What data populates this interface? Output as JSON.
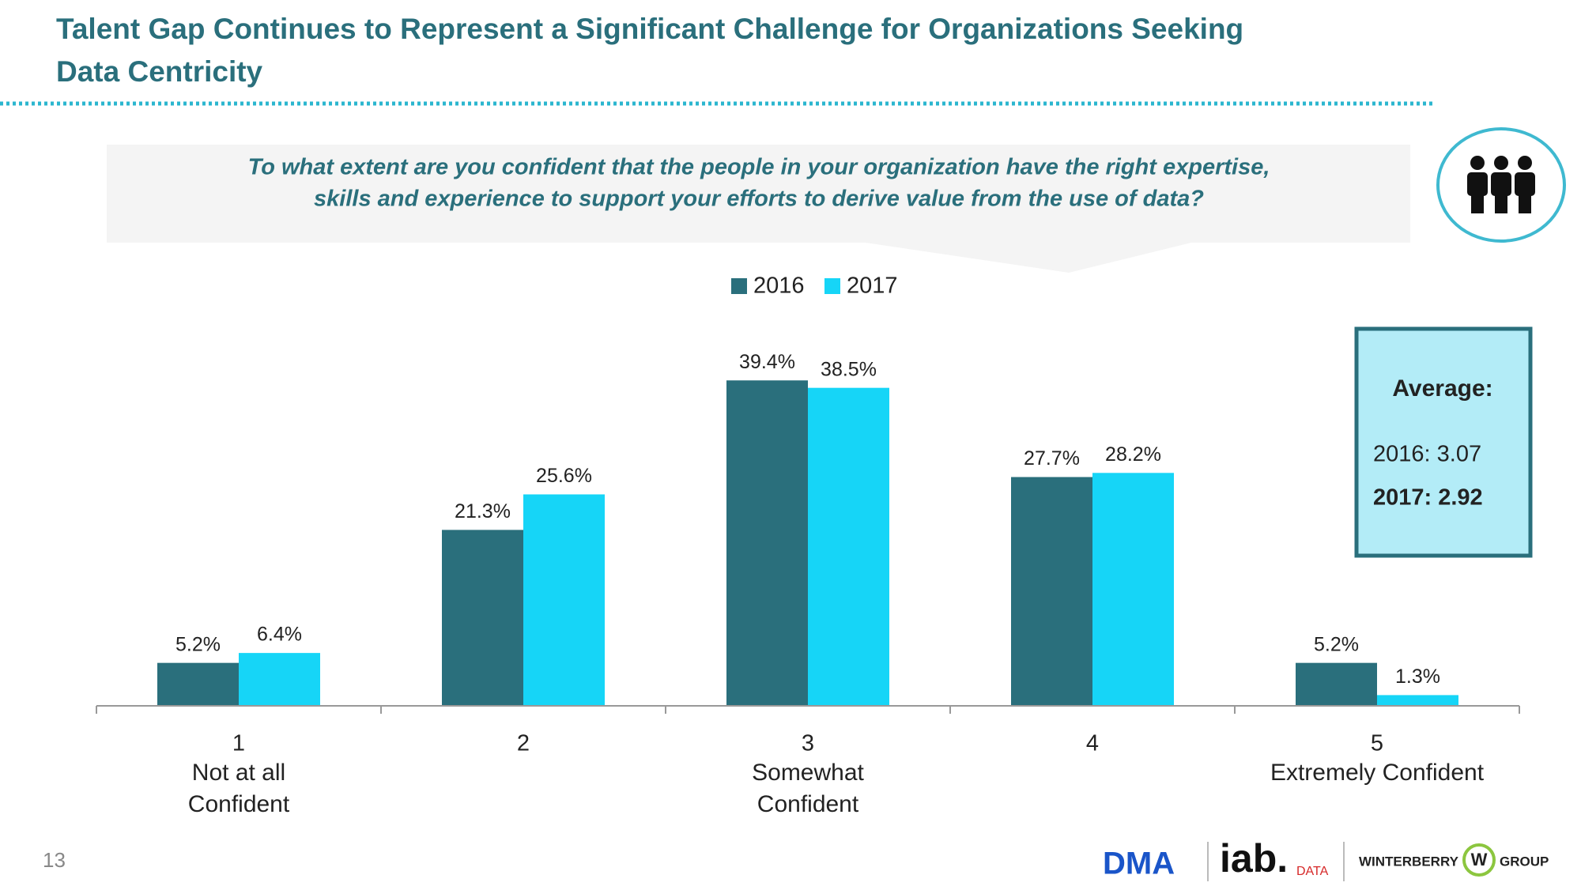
{
  "title": [
    "Talent Gap Continues to Represent a Significant Challenge for Organizations Seeking",
    "Data Centricity"
  ],
  "question": [
    "To what extent are you confident that the people in your organization have the right expertise,",
    "skills and experience to support your efforts to derive value from the use of data?"
  ],
  "average_box": {
    "heading": "Average:",
    "lines": [
      "2016: 3.07",
      "2017: 2.92"
    ]
  },
  "page_number": "13",
  "footer": {
    "dma": "DMA",
    "iab": "iab.",
    "iab_sub": "DATA",
    "winterberry": "WINTERBERRY",
    "w": "W",
    "group": "GROUP"
  },
  "chart_data": {
    "type": "bar",
    "categories": [
      "1",
      "2",
      "3",
      "4",
      "5"
    ],
    "category_notes": [
      [
        "Not at all",
        "Confident"
      ],
      null,
      [
        "Somewhat",
        "Confident"
      ],
      null,
      [
        "Extremely Confident"
      ]
    ],
    "series": [
      {
        "name": "2016",
        "color": "#2a6f7c",
        "values": [
          5.2,
          21.3,
          39.4,
          27.7,
          5.2
        ],
        "value_labels": [
          "5.2%",
          "21.3%",
          "39.4%",
          "27.7%",
          "5.2%"
        ]
      },
      {
        "name": "2017",
        "color": "#16d5f7",
        "values": [
          6.4,
          25.6,
          38.5,
          28.2,
          1.3
        ],
        "value_labels": [
          "6.4%",
          "25.6%",
          "38.5%",
          "28.2%",
          "1.3%"
        ]
      }
    ],
    "ylim": [
      0,
      40
    ],
    "grid": false
  }
}
